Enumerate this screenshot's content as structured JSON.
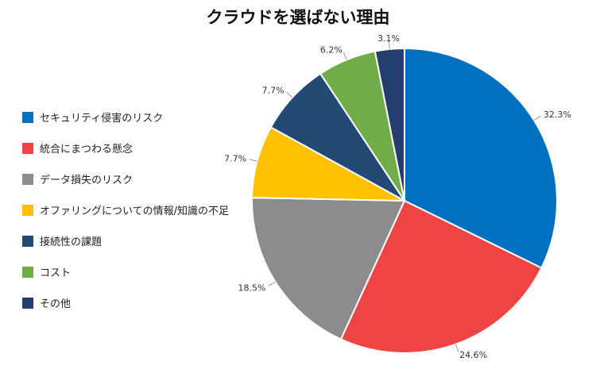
{
  "chart_data": {
    "type": "pie",
    "title": "クラウドを選ばない理由",
    "legend_position": "left",
    "slices": [
      {
        "label": "セキュリティ侵害のリスク",
        "value": 32.3,
        "value_label": "32.3%",
        "color": "#0070C0"
      },
      {
        "label": "統合にまつわる懸念",
        "value": 24.6,
        "value_label": "24.6%",
        "color": "#EF4444"
      },
      {
        "label": "データ損失のリスク",
        "value": 18.5,
        "value_label": "18.5%",
        "color": "#8C8C8C"
      },
      {
        "label": "オファリングについての情報/知識の不足",
        "value": 7.7,
        "value_label": "7.7%",
        "color": "#FFC000"
      },
      {
        "label": "接続性の課題",
        "value": 7.7,
        "value_label": "7.7%",
        "color": "#234A75"
      },
      {
        "label": "コスト",
        "value": 6.2,
        "value_label": "6.2%",
        "color": "#70AD47"
      },
      {
        "label": "その他",
        "value": 3.1,
        "value_label": "3.1%",
        "color": "#253E70"
      }
    ]
  }
}
